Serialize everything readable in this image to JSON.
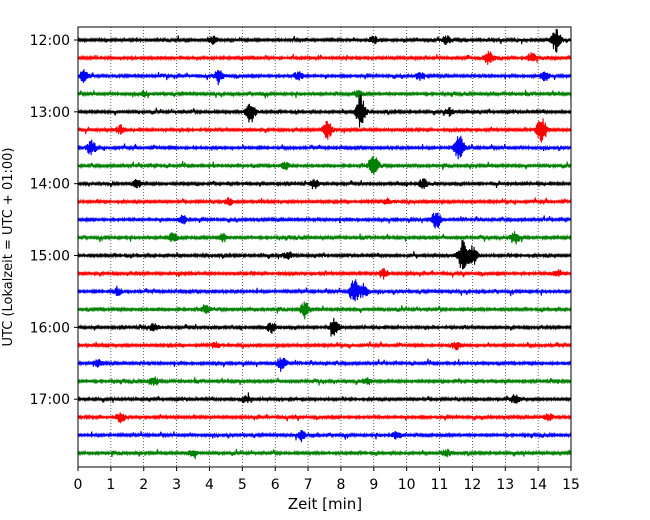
{
  "chart_data": {
    "type": "line",
    "title": "",
    "xlabel": "Zeit  [min]",
    "ylabel": "UTC (Lokalzeit = UTC + 01:00)",
    "xlim": [
      0,
      15
    ],
    "x_ticks": [
      0,
      1,
      2,
      3,
      4,
      5,
      6,
      7,
      8,
      9,
      10,
      11,
      12,
      13,
      14,
      15
    ],
    "x_tick_labels": [
      "0",
      "1",
      "2",
      "3",
      "4",
      "5",
      "6",
      "7",
      "8",
      "9",
      "10",
      "11",
      "12",
      "13",
      "14",
      "15"
    ],
    "y_tick_labels": [
      "12:00",
      "13:00",
      "14:00",
      "15:00",
      "16:00",
      "17:00"
    ],
    "y_tick_rows": [
      0,
      4,
      8,
      12,
      16,
      20
    ],
    "grid": true,
    "row_interval_minutes": 15,
    "colors": [
      "#000000",
      "#ff0000",
      "#0000ff",
      "#008000"
    ],
    "traces": [
      {
        "start": "12:00",
        "color": "#000000",
        "events": [
          {
            "t": 4.1,
            "a": 0.35
          },
          {
            "t": 9.0,
            "a": 0.3
          },
          {
            "t": 11.2,
            "a": 0.35
          },
          {
            "t": 14.55,
            "a": 1.0
          }
        ]
      },
      {
        "start": "12:15",
        "color": "#ff0000",
        "events": [
          {
            "t": 12.5,
            "a": 0.55
          },
          {
            "t": 13.8,
            "a": 0.4
          }
        ]
      },
      {
        "start": "12:30",
        "color": "#0000ff",
        "events": [
          {
            "t": 0.2,
            "a": 0.55
          },
          {
            "t": 4.3,
            "a": 0.5
          },
          {
            "t": 6.7,
            "a": 0.35
          },
          {
            "t": 10.4,
            "a": 0.35
          },
          {
            "t": 14.2,
            "a": 0.4
          }
        ]
      },
      {
        "start": "12:45",
        "color": "#008000",
        "events": [
          {
            "t": 2.0,
            "a": 0.25
          },
          {
            "t": 8.5,
            "a": 0.3
          }
        ]
      },
      {
        "start": "13:00",
        "color": "#000000",
        "events": [
          {
            "t": 5.25,
            "a": 1.0
          },
          {
            "t": 8.6,
            "a": 1.4
          },
          {
            "t": 11.3,
            "a": 0.3
          }
        ]
      },
      {
        "start": "13:15",
        "color": "#ff0000",
        "events": [
          {
            "t": 1.3,
            "a": 0.35
          },
          {
            "t": 7.6,
            "a": 0.85
          },
          {
            "t": 14.1,
            "a": 1.2
          }
        ]
      },
      {
        "start": "13:30",
        "color": "#0000ff",
        "events": [
          {
            "t": 0.4,
            "a": 0.6
          },
          {
            "t": 11.6,
            "a": 1.1
          }
        ]
      },
      {
        "start": "13:45",
        "color": "#008000",
        "events": [
          {
            "t": 9.0,
            "a": 0.85
          },
          {
            "t": 6.3,
            "a": 0.3
          }
        ]
      },
      {
        "start": "14:00",
        "color": "#000000",
        "events": [
          {
            "t": 1.8,
            "a": 0.35
          },
          {
            "t": 7.2,
            "a": 0.35
          },
          {
            "t": 10.5,
            "a": 0.4
          }
        ]
      },
      {
        "start": "14:15",
        "color": "#ff0000",
        "events": [
          {
            "t": 4.6,
            "a": 0.3
          },
          {
            "t": 9.4,
            "a": 0.25
          }
        ]
      },
      {
        "start": "14:30",
        "color": "#0000ff",
        "events": [
          {
            "t": 3.2,
            "a": 0.35
          },
          {
            "t": 10.9,
            "a": 0.75
          }
        ]
      },
      {
        "start": "14:45",
        "color": "#008000",
        "events": [
          {
            "t": 2.9,
            "a": 0.4
          },
          {
            "t": 4.4,
            "a": 0.35
          },
          {
            "t": 13.3,
            "a": 0.55
          }
        ]
      },
      {
        "start": "15:00",
        "color": "#000000",
        "events": [
          {
            "t": 11.7,
            "a": 1.2
          },
          {
            "t": 12.0,
            "a": 0.9
          },
          {
            "t": 6.4,
            "a": 0.3
          }
        ]
      },
      {
        "start": "15:15",
        "color": "#ff0000",
        "events": [
          {
            "t": 9.3,
            "a": 0.4
          },
          {
            "t": 14.6,
            "a": 0.3
          }
        ]
      },
      {
        "start": "15:30",
        "color": "#0000ff",
        "events": [
          {
            "t": 8.4,
            "a": 1.0
          },
          {
            "t": 8.7,
            "a": 0.6
          },
          {
            "t": 1.2,
            "a": 0.3
          }
        ]
      },
      {
        "start": "15:45",
        "color": "#008000",
        "events": [
          {
            "t": 6.9,
            "a": 0.6
          },
          {
            "t": 3.9,
            "a": 0.3
          }
        ]
      },
      {
        "start": "16:00",
        "color": "#000000",
        "events": [
          {
            "t": 5.9,
            "a": 0.45
          },
          {
            "t": 7.8,
            "a": 0.7
          },
          {
            "t": 2.3,
            "a": 0.3
          }
        ]
      },
      {
        "start": "16:15",
        "color": "#ff0000",
        "events": [
          {
            "t": 11.5,
            "a": 0.35
          },
          {
            "t": 4.2,
            "a": 0.25
          }
        ]
      },
      {
        "start": "16:30",
        "color": "#0000ff",
        "events": [
          {
            "t": 6.2,
            "a": 0.65
          },
          {
            "t": 0.6,
            "a": 0.3
          }
        ]
      },
      {
        "start": "16:45",
        "color": "#008000",
        "events": [
          {
            "t": 2.3,
            "a": 0.4
          },
          {
            "t": 8.8,
            "a": 0.3
          }
        ]
      },
      {
        "start": "17:00",
        "color": "#000000",
        "events": [
          {
            "t": 5.1,
            "a": 0.3
          },
          {
            "t": 13.3,
            "a": 0.35
          }
        ]
      },
      {
        "start": "17:15",
        "color": "#ff0000",
        "events": [
          {
            "t": 1.3,
            "a": 0.4
          },
          {
            "t": 14.3,
            "a": 0.3
          }
        ]
      },
      {
        "start": "17:30",
        "color": "#0000ff",
        "events": [
          {
            "t": 6.8,
            "a": 0.4
          },
          {
            "t": 9.7,
            "a": 0.3
          }
        ]
      },
      {
        "start": "17:45",
        "color": "#008000",
        "events": [
          {
            "t": 3.5,
            "a": 0.3
          },
          {
            "t": 11.2,
            "a": 0.3
          }
        ]
      }
    ]
  }
}
